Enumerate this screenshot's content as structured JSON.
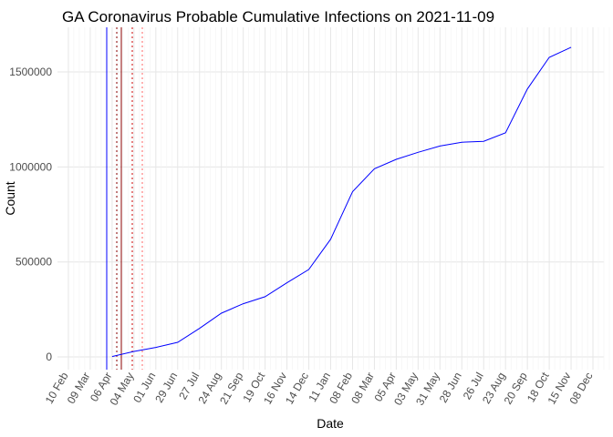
{
  "chart_data": {
    "type": "line",
    "title": "GA Coronavirus Probable Cumulative Infections on 2021-11-09",
    "x_label": "Date",
    "y_label": "Count",
    "categories": [
      "10 Feb",
      "09 Mar",
      "06 Apr",
      "04 May",
      "01 Jun",
      "29 Jun",
      "27 Jul",
      "24 Aug",
      "21 Sep",
      "19 Oct",
      "16 Nov",
      "14 Dec",
      "11 Jan",
      "08 Feb",
      "08 Mar",
      "05 Apr",
      "03 May",
      "31 May",
      "28 Jun",
      "26 Jul",
      "23 Aug",
      "20 Sep",
      "18 Oct",
      "15 Nov",
      "08 Dec"
    ],
    "series": [
      {
        "name": "Count",
        "color": "#0000ff",
        "values": [
          null,
          null,
          2000,
          29000,
          50000,
          77000,
          150000,
          230000,
          280000,
          317000,
          390000,
          460000,
          620000,
          870000,
          990000,
          1040000,
          1077000,
          1110000,
          1130000,
          1135000,
          1180000,
          1410000,
          1577000,
          1630000,
          null
        ]
      }
    ],
    "ylim": [
      -67000,
      1735000
    ],
    "yticks": [
      0,
      500000,
      1000000,
      1500000
    ],
    "grid": true
  }
}
